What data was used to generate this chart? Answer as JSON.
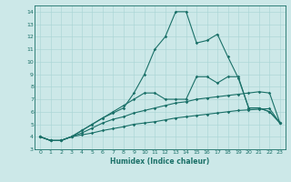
{
  "xlabel": "Humidex (Indice chaleur)",
  "ylabel": "",
  "background_color": "#cce8e8",
  "line_color": "#1a7068",
  "xlim": [
    -0.5,
    23.5
  ],
  "ylim": [
    3,
    14.5
  ],
  "xticks": [
    0,
    1,
    2,
    3,
    4,
    5,
    6,
    7,
    8,
    9,
    10,
    11,
    12,
    13,
    14,
    15,
    16,
    17,
    18,
    19,
    20,
    21,
    22,
    23
  ],
  "yticks": [
    3,
    4,
    5,
    6,
    7,
    8,
    9,
    10,
    11,
    12,
    13,
    14
  ],
  "series": [
    {
      "x": [
        0,
        1,
        2,
        3,
        4,
        5,
        6,
        7,
        8,
        9,
        10,
        11,
        12,
        13,
        14,
        15,
        16,
        17,
        18,
        19,
        20,
        21,
        22,
        23
      ],
      "y": [
        4.0,
        3.7,
        3.7,
        4.0,
        4.15,
        4.3,
        4.5,
        4.65,
        4.8,
        5.0,
        5.1,
        5.2,
        5.35,
        5.5,
        5.6,
        5.7,
        5.8,
        5.9,
        6.0,
        6.1,
        6.15,
        6.2,
        6.25,
        5.1
      ]
    },
    {
      "x": [
        0,
        1,
        2,
        3,
        4,
        5,
        6,
        7,
        8,
        9,
        10,
        11,
        12,
        13,
        14,
        15,
        16,
        17,
        18,
        19,
        20,
        21,
        22,
        23
      ],
      "y": [
        4.0,
        3.7,
        3.7,
        4.0,
        4.3,
        4.7,
        5.1,
        5.4,
        5.6,
        5.9,
        6.1,
        6.3,
        6.5,
        6.7,
        6.8,
        7.0,
        7.1,
        7.2,
        7.3,
        7.4,
        7.5,
        7.6,
        7.5,
        5.1
      ]
    },
    {
      "x": [
        0,
        1,
        2,
        3,
        4,
        5,
        6,
        7,
        8,
        9,
        10,
        11,
        12,
        13,
        14,
        15,
        16,
        17,
        18,
        19,
        20,
        21,
        22,
        23
      ],
      "y": [
        4.0,
        3.7,
        3.7,
        4.0,
        4.5,
        5.0,
        5.5,
        5.9,
        6.3,
        7.5,
        9.0,
        11.0,
        12.0,
        14.0,
        14.0,
        11.5,
        11.7,
        12.2,
        10.4,
        8.7,
        6.3,
        6.3,
        6.0,
        5.1
      ]
    },
    {
      "x": [
        0,
        1,
        2,
        3,
        4,
        5,
        6,
        7,
        8,
        9,
        10,
        11,
        12,
        13,
        14,
        15,
        16,
        17,
        18,
        19,
        20,
        21,
        22,
        23
      ],
      "y": [
        4.0,
        3.7,
        3.7,
        4.0,
        4.5,
        5.0,
        5.5,
        6.0,
        6.5,
        7.0,
        7.5,
        7.5,
        7.0,
        7.0,
        7.0,
        8.8,
        8.8,
        8.3,
        8.8,
        8.8,
        6.3,
        6.3,
        6.0,
        5.1
      ]
    }
  ]
}
